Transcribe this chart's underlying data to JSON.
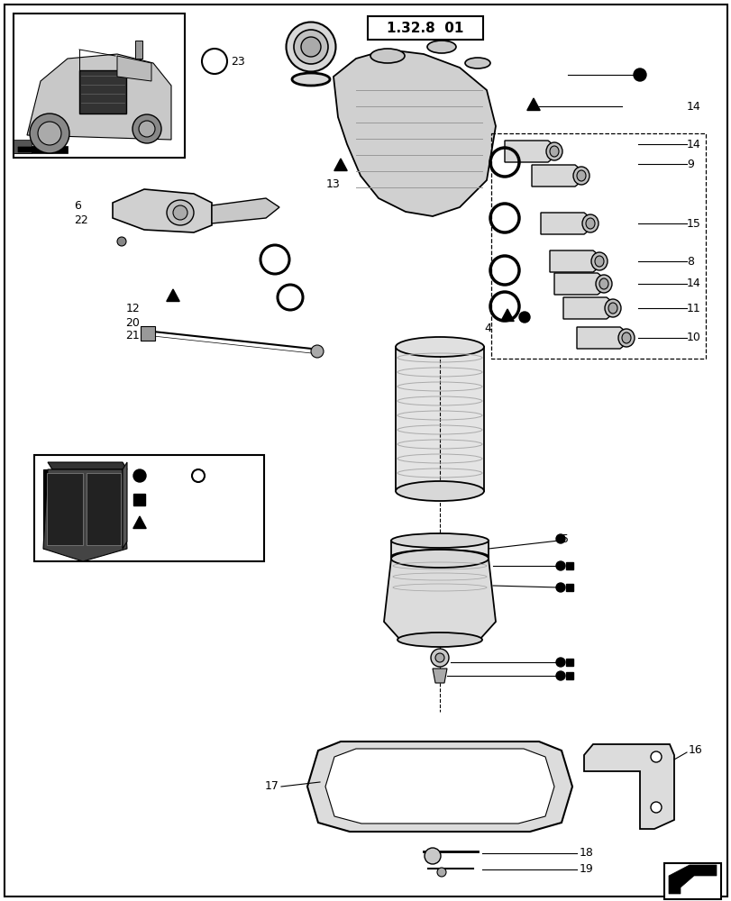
{
  "title": "1.32.8  01",
  "background_color": "#ffffff",
  "line_color": "#000000",
  "figsize": [
    8.12,
    10.0
  ],
  "dpi": 100
}
